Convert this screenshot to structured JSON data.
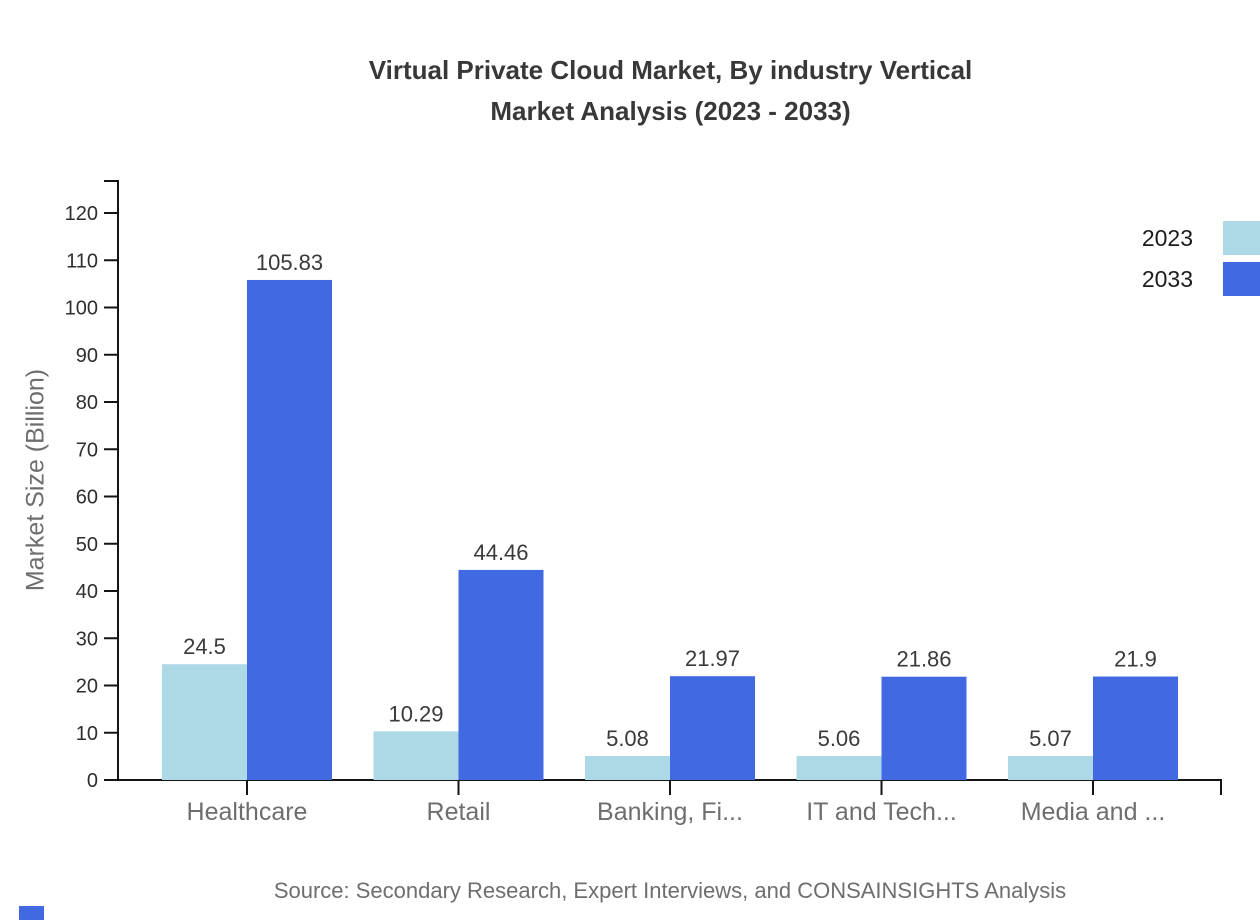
{
  "title": {
    "line1": "Virtual Private Cloud Market, By industry Vertical",
    "line2": "Market Analysis (2023 - 2033)"
  },
  "ylabel": "Market Size (Billion)",
  "source": "Source: Secondary Research, Expert Interviews, and CONSAINSIGHTS Analysis",
  "legend": [
    {
      "label": "2023",
      "color": "#ADD8E6"
    },
    {
      "label": "2033",
      "color": "#4169E1"
    }
  ],
  "colors": {
    "axis": "#141414",
    "title_text": "#383838",
    "tick_label_text": "#2e2e2e",
    "category_text": "#6e6e6e",
    "value_label_text": "#3a3a3a",
    "source_text": "#6e6e6e",
    "accent": "#4169E1",
    "series_2023": "#ADD8E6",
    "series_2033": "#4169E1"
  },
  "chart_data": {
    "type": "bar",
    "title": "Virtual Private Cloud Market, By industry Vertical Market Analysis (2023 - 2033)",
    "categories": [
      "Healthcare",
      "Retail",
      "Banking, Fi...",
      "IT and Tech...",
      "Media and ..."
    ],
    "series": [
      {
        "name": "2023",
        "color": "#ADD8E6",
        "values": [
          24.5,
          10.29,
          5.08,
          5.06,
          5.07
        ]
      },
      {
        "name": "2033",
        "color": "#4169E1",
        "values": [
          105.83,
          44.46,
          21.97,
          21.86,
          21.9
        ]
      }
    ],
    "xlabel": "",
    "ylabel": "Market Size (Billion)",
    "ylim": [
      0,
      120
    ],
    "ytick_step": 10,
    "yticks": [
      0,
      10,
      20,
      30,
      40,
      50,
      60,
      70,
      80,
      90,
      100,
      110,
      120
    ],
    "grid": false,
    "value_labels": true,
    "legend_position": "top-right"
  }
}
